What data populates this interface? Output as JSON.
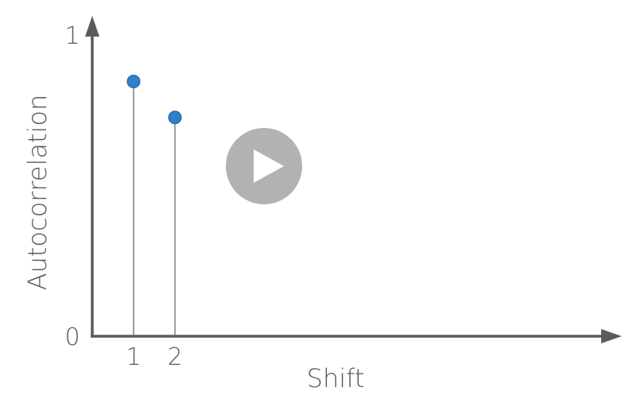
{
  "chart_data": {
    "type": "stem",
    "xlabel": "Shift",
    "ylabel": "Autocorrelation",
    "xlim": [
      0,
      12.5
    ],
    "ylim": [
      0,
      1
    ],
    "x_tick_labels": [
      "1",
      "2"
    ],
    "y_tick_labels": [
      "0",
      "1"
    ],
    "x": [
      1,
      2
    ],
    "y": [
      0.85,
      0.73
    ],
    "colors": {
      "marker": "#2f7fc9",
      "axis": "#5b5b5b"
    },
    "grid": false
  },
  "overlay": {
    "icon": "play-icon",
    "color": "#b2b2b2"
  }
}
